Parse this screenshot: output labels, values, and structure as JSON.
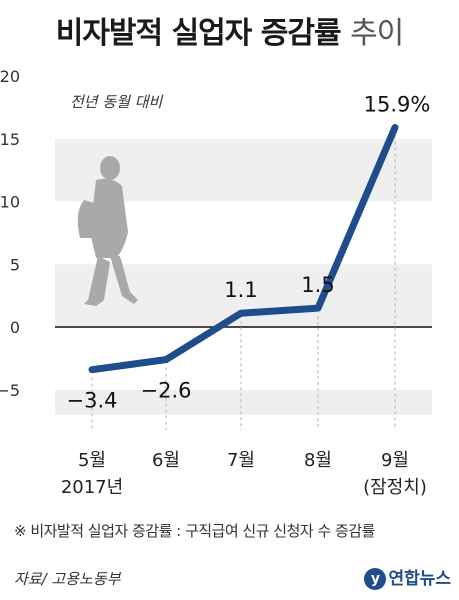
{
  "header": {
    "title_main": "비자발적 실업자 증감률",
    "title_tail": "추이"
  },
  "chart_data": {
    "type": "line",
    "title": "비자발적 실업자 증감률 추이",
    "annotation": "전년 동월 대비",
    "categories": [
      "5월",
      "6월",
      "7월",
      "8월",
      "9월"
    ],
    "category_sublabels": [
      "2017년",
      "",
      "",
      "",
      "(잠정치)"
    ],
    "values": [
      -3.4,
      -2.6,
      1.1,
      1.5,
      15.9
    ],
    "value_labels": [
      "−3.4",
      "−2.6",
      "1.1",
      "1.5",
      "15.9%"
    ],
    "yticks": [
      -5,
      0,
      5,
      10,
      15,
      20
    ],
    "ylim": [
      -7,
      20
    ],
    "line_color": "#1f4d8c",
    "band_color": "#efefef"
  },
  "footer": {
    "footnote": "※ 비자발적 실업자 증감률 : 구직급여 신규 신청자 수 증감률",
    "source": "자료/ 고용노동부",
    "logo_mark": "y",
    "logo_text": "연합뉴스"
  }
}
